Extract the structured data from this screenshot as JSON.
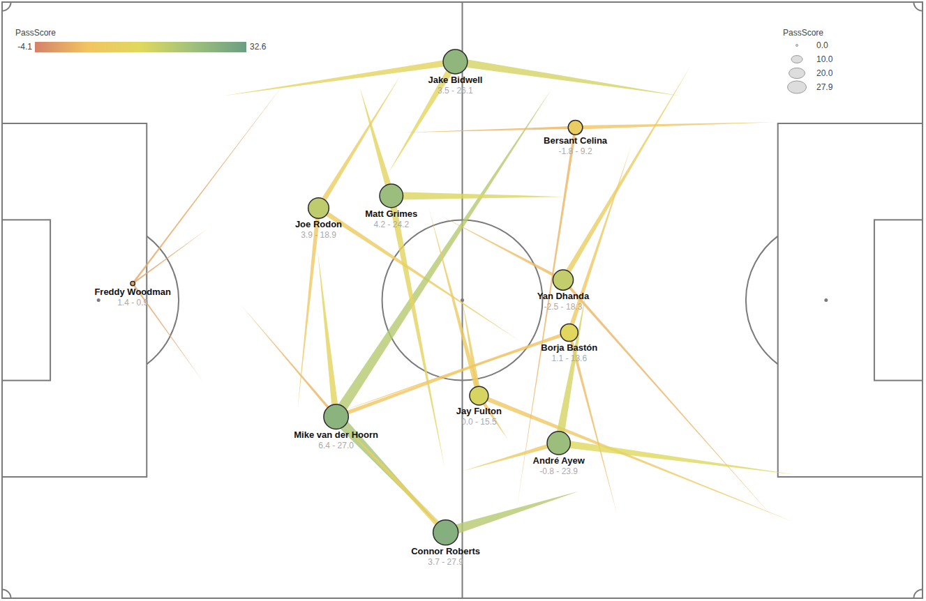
{
  "chart_data": {
    "type": "pass_network",
    "xlim": [
      0,
      105
    ],
    "ylim": [
      0,
      68
    ],
    "tick_labels": false,
    "colorbar": {
      "title": "PassScore",
      "range": [
        -4.1,
        32.6
      ],
      "ticks": [
        -4.1,
        32.6
      ],
      "colors": [
        "#d4826a",
        "#f2c462",
        "#e0d85e",
        "#9fc07c",
        "#6b9e82"
      ]
    },
    "size_legend": {
      "title": "PassScore",
      "values": [
        {
          "value": 0,
          "label": "0.0"
        },
        {
          "value": 10,
          "label": "10.0"
        },
        {
          "value": 20,
          "label": "20.0"
        },
        {
          "value": 27.9,
          "label": "27.9"
        }
      ]
    },
    "players": [
      {
        "name": "Freddy Woodman",
        "x": 14.9,
        "y": 32.1,
        "value": 0.9,
        "value_label": "1.4 - 0.9"
      },
      {
        "name": "Joe Rodon",
        "x": 36.1,
        "y": 23.5,
        "value": 18.9,
        "value_label": "3.9 - 18.9"
      },
      {
        "name": "Mike van der Hoorn",
        "x": 38.1,
        "y": 47.3,
        "value": 27.0,
        "value_label": "6.4 - 27.0"
      },
      {
        "name": "Jake Bidwell",
        "x": 51.7,
        "y": 6.8,
        "value": 26.1,
        "value_label": "3.5 - 26.1"
      },
      {
        "name": "Connor Roberts",
        "x": 50.6,
        "y": 60.5,
        "value": 27.9,
        "value_label": "3.7 - 27.9"
      },
      {
        "name": "Matt Grimes",
        "x": 44.4,
        "y": 22.1,
        "value": 24.2,
        "value_label": "4.2 - 24.2"
      },
      {
        "name": "Jay Fulton",
        "x": 54.4,
        "y": 44.9,
        "value": 15.5,
        "value_label": "0.0 - 15.5"
      },
      {
        "name": "Yan Dhanda",
        "x": 64.0,
        "y": 31.7,
        "value": 18.3,
        "value_label": "-2.5 - 18.3"
      },
      {
        "name": "Bersant Celina",
        "x": 65.4,
        "y": 14.3,
        "value": 9.2,
        "value_label": "-1.8 - 9.2"
      },
      {
        "name": "Borja Bastón",
        "x": 64.7,
        "y": 37.7,
        "value": 13.6,
        "value_label": "1.1 - 13.6"
      },
      {
        "name": "André Ayew",
        "x": 63.5,
        "y": 50.3,
        "value": 23.9,
        "value_label": "-0.8 - 23.9"
      }
    ],
    "passes": [
      {
        "from": 0,
        "x": 32.6,
        "y": 8.7,
        "score": 1.0
      },
      {
        "from": 0,
        "x": 23.5,
        "y": 25.8,
        "score": 0.5
      },
      {
        "from": 0,
        "x": 23.0,
        "y": 43.4,
        "score": 0.8
      },
      {
        "from": 1,
        "x": 45.5,
        "y": 8.3,
        "score": 9.0
      },
      {
        "from": 1,
        "x": 59.1,
        "y": 38.7,
        "score": 8.0
      },
      {
        "from": 1,
        "x": 33.7,
        "y": 46.5,
        "score": 7.0
      },
      {
        "from": 2,
        "x": 62.7,
        "y": 9.9,
        "score": 20.0
      },
      {
        "from": 2,
        "x": 27.2,
        "y": 34.5,
        "score": 3.0
      },
      {
        "from": 2,
        "x": 50.6,
        "y": 60.5,
        "score": 22.0
      },
      {
        "from": 2,
        "x": 36.0,
        "y": 28.4,
        "score": 12.0
      },
      {
        "from": 2,
        "x": 62.7,
        "y": 38.3,
        "score": 6.0
      },
      {
        "from": 3,
        "x": 25.2,
        "y": 10.7,
        "score": 12.0
      },
      {
        "from": 3,
        "x": 77.4,
        "y": 10.7,
        "score": 16.0
      },
      {
        "from": 3,
        "x": 44.0,
        "y": 19.6,
        "score": 13.0
      },
      {
        "from": 4,
        "x": 65.8,
        "y": 55.8,
        "score": 20.0
      },
      {
        "from": 4,
        "x": 38.1,
        "y": 47.3,
        "score": 10.0
      },
      {
        "from": 5,
        "x": 64.1,
        "y": 22.2,
        "score": 15.0
      },
      {
        "from": 5,
        "x": 40.8,
        "y": 9.7,
        "score": 12.0
      },
      {
        "from": 5,
        "x": 50.5,
        "y": 53.2,
        "score": 12.0
      },
      {
        "from": 6,
        "x": 90.5,
        "y": 59.4,
        "score": 7.0
      },
      {
        "from": 6,
        "x": 48.7,
        "y": 23.6,
        "score": 8.0
      },
      {
        "from": 6,
        "x": 57.7,
        "y": 49.9,
        "score": 6.0
      },
      {
        "from": 6,
        "x": 52.5,
        "y": 34.0,
        "score": 8.0
      },
      {
        "from": 7,
        "x": 78.6,
        "y": 7.2,
        "score": 9.0
      },
      {
        "from": 7,
        "x": 49.9,
        "y": 24.3,
        "score": 4.0
      },
      {
        "from": 7,
        "x": 88.5,
        "y": 59.4,
        "score": 3.0
      },
      {
        "from": 8,
        "x": 45.4,
        "y": 14.9,
        "score": 3.0
      },
      {
        "from": 8,
        "x": 88.1,
        "y": 13.7,
        "score": 6.0
      },
      {
        "from": 8,
        "x": 58.7,
        "y": 57.8,
        "score": 3.0
      },
      {
        "from": 9,
        "x": 71.8,
        "y": 16.3,
        "score": 7.0
      },
      {
        "from": 9,
        "x": 70.2,
        "y": 58.6,
        "score": 4.0
      },
      {
        "from": 9,
        "x": 38.6,
        "y": 46.7,
        "score": 5.0
      },
      {
        "from": 10,
        "x": 90.5,
        "y": 53.9,
        "score": 14.0
      },
      {
        "from": 10,
        "x": 52.5,
        "y": 53.5,
        "score": 8.0
      },
      {
        "from": 10,
        "x": 66.6,
        "y": 33.2,
        "score": 16.0
      }
    ]
  }
}
